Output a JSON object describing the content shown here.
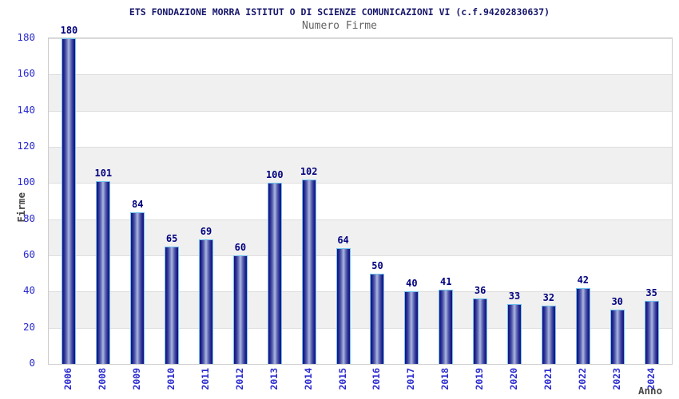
{
  "header": {
    "title": "ETS FONDAZIONE MORRA ISTITUT O DI SCIENZE COMUNICAZIONI VI (c.f.94202830637)",
    "subtitle": "Numero Firme"
  },
  "chart_data": {
    "type": "bar",
    "title": "ETS FONDAZIONE MORRA ISTITUT O DI SCIENZE COMUNICAZIONI VI (c.f.94202830637)",
    "subtitle": "Numero Firme",
    "xlabel": "Anno",
    "ylabel": "Firme",
    "categories": [
      "2006",
      "2008",
      "2009",
      "2010",
      "2011",
      "2012",
      "2013",
      "2014",
      "2015",
      "2016",
      "2017",
      "2018",
      "2019",
      "2020",
      "2021",
      "2022",
      "2023",
      "2024"
    ],
    "values": [
      180,
      101,
      84,
      65,
      69,
      60,
      100,
      102,
      64,
      50,
      40,
      41,
      36,
      33,
      32,
      42,
      30,
      35
    ],
    "ylim": [
      0,
      180
    ],
    "y_ticks": [
      0,
      20,
      40,
      60,
      80,
      100,
      120,
      140,
      160,
      180
    ],
    "grid": "horizontal alternating bands, gridline every 20",
    "legend": "none",
    "colors": {
      "title": "#16166b",
      "subtitle": "#636363",
      "axis_tick_labels": "#2a2ad0",
      "bar_value_labels": "#00007e",
      "bar_dark": "#14147d",
      "bar_light": "#b0b8e4",
      "bar_border": "#6fc3ef",
      "band_gray": "#f0f0f0",
      "plot_border": "#cccccc",
      "axis_titles": "#474747"
    }
  }
}
